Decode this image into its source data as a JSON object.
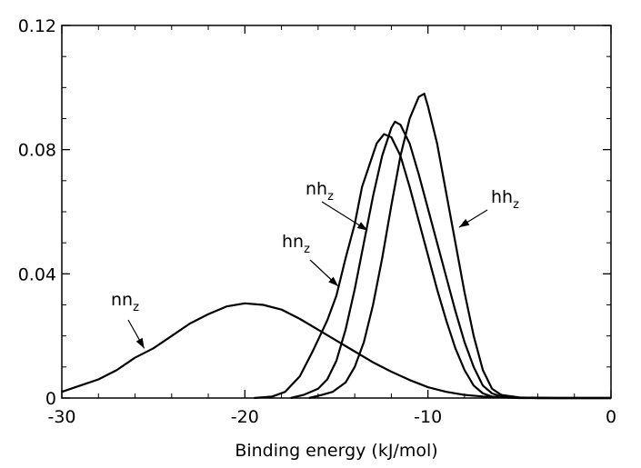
{
  "chart_data": {
    "type": "line",
    "title": "",
    "xlabel": "Binding energy (kJ/mol)",
    "ylabel": "",
    "xlim": [
      -30,
      0
    ],
    "ylim": [
      0,
      0.12
    ],
    "xticks": [
      -30,
      -20,
      -10,
      0
    ],
    "xtick_labels": [
      "-30",
      "-20",
      "-10",
      "0"
    ],
    "yticks": [
      0,
      0.04,
      0.08,
      0.12
    ],
    "ytick_labels": [
      "0",
      "0.04",
      "0.08",
      "0.12"
    ],
    "grid": false,
    "series": [
      {
        "id": "nn",
        "name": "nn",
        "name_sub": "z",
        "x": [
          -30,
          -29,
          -28,
          -27,
          -26,
          -25,
          -24,
          -23,
          -22,
          -21,
          -20,
          -19,
          -18,
          -17,
          -16,
          -15,
          -14,
          -13,
          -12,
          -11,
          -10,
          -9,
          -8,
          -7,
          -6,
          -5,
          -4,
          -3,
          -2,
          -1,
          0
        ],
        "y": [
          0.002,
          0.004,
          0.006,
          0.009,
          0.013,
          0.016,
          0.02,
          0.024,
          0.027,
          0.0295,
          0.0305,
          0.03,
          0.0285,
          0.0255,
          0.022,
          0.0185,
          0.015,
          0.0115,
          0.0085,
          0.0058,
          0.0035,
          0.002,
          0.001,
          0.0005,
          0.0002,
          0.0001,
          0.0001,
          0.0,
          0.0,
          0.0,
          0.0
        ]
      },
      {
        "id": "hn",
        "name": "hn",
        "name_sub": "z",
        "x": [
          -19.5,
          -18.5,
          -17.8,
          -17,
          -16.3,
          -15.5,
          -15,
          -14.5,
          -14,
          -13.6,
          -13.2,
          -12.8,
          -12.4,
          -12,
          -11.5,
          -11,
          -10.5,
          -10,
          -9.5,
          -9,
          -8.5,
          -8,
          -7.5,
          -7,
          -6.5,
          -6,
          -5,
          -4,
          -2,
          0
        ],
        "y": [
          0.0,
          0.0005,
          0.002,
          0.007,
          0.015,
          0.025,
          0.033,
          0.045,
          0.056,
          0.068,
          0.075,
          0.082,
          0.085,
          0.084,
          0.078,
          0.068,
          0.057,
          0.046,
          0.035,
          0.025,
          0.016,
          0.009,
          0.004,
          0.0015,
          0.0005,
          0.0002,
          0.0,
          0.0,
          0.0,
          0.0
        ]
      },
      {
        "id": "nh",
        "name": "nh",
        "name_sub": "z",
        "x": [
          -17.5,
          -16.8,
          -16,
          -15.5,
          -15,
          -14.5,
          -14,
          -13.5,
          -13,
          -12.5,
          -12,
          -11.8,
          -11.5,
          -11,
          -10.5,
          -10,
          -9.5,
          -9,
          -8.5,
          -8,
          -7.5,
          -7,
          -6.5,
          -6,
          -5,
          -4,
          -2,
          0
        ],
        "y": [
          0.0,
          0.001,
          0.003,
          0.006,
          0.012,
          0.022,
          0.035,
          0.05,
          0.065,
          0.078,
          0.087,
          0.089,
          0.088,
          0.082,
          0.072,
          0.061,
          0.05,
          0.039,
          0.028,
          0.018,
          0.01,
          0.004,
          0.0015,
          0.0005,
          0.0001,
          0.0,
          0.0,
          0.0
        ]
      },
      {
        "id": "hh",
        "name": "hh",
        "name_sub": "z",
        "x": [
          -16.5,
          -15.8,
          -15.2,
          -14.5,
          -14,
          -13.5,
          -13,
          -12.5,
          -12,
          -11.5,
          -11,
          -10.5,
          -10.2,
          -10,
          -9.5,
          -9,
          -8.5,
          -8,
          -7.5,
          -7,
          -6.5,
          -6,
          -5,
          -4,
          -2,
          0
        ],
        "y": [
          0.0,
          0.001,
          0.002,
          0.005,
          0.01,
          0.018,
          0.03,
          0.045,
          0.062,
          0.078,
          0.09,
          0.097,
          0.098,
          0.094,
          0.082,
          0.066,
          0.05,
          0.034,
          0.02,
          0.009,
          0.003,
          0.001,
          0.0002,
          0.0,
          0.0,
          0.0
        ]
      }
    ],
    "annotations": [
      {
        "text": "nn",
        "sub": "z",
        "series": "nn",
        "arrow_to": [
          -25.5,
          0.016
        ]
      },
      {
        "text": "hn",
        "sub": "z",
        "series": "hn",
        "arrow_to": [
          -14.9,
          0.036
        ]
      },
      {
        "text": "nh",
        "sub": "z",
        "series": "nh",
        "arrow_to": [
          -13.3,
          0.054
        ]
      },
      {
        "text": "hh",
        "sub": "z",
        "series": "hh",
        "arrow_to": [
          -8.3,
          0.055
        ]
      }
    ]
  }
}
